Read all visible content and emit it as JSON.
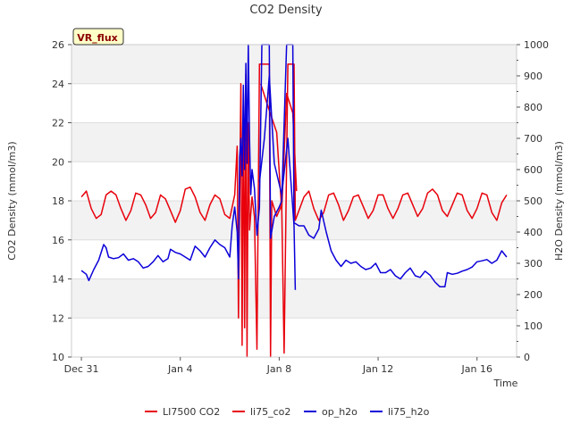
{
  "chart_data": {
    "type": "line",
    "title": "CO2 Density",
    "xlabel": "Time",
    "ylabel_left": "CO2 Density (mmol/m3)",
    "ylabel_right": "H2O Density (mmol/m3)",
    "badge": "VR_flux",
    "grid": true,
    "legend_position": "bottom",
    "x_ticks": [
      {
        "label": "Dec 31",
        "day": 0
      },
      {
        "label": "Jan 4",
        "day": 4
      },
      {
        "label": "Jan 8",
        "day": 8
      },
      {
        "label": "Jan 12",
        "day": 12
      },
      {
        "label": "Jan 16",
        "day": 16
      }
    ],
    "xlim": [
      -0.4,
      17.6
    ],
    "ylim_left": [
      10,
      26
    ],
    "yticks_left": [
      10,
      12,
      14,
      16,
      18,
      20,
      22,
      24,
      26
    ],
    "ylim_right": [
      0,
      1000
    ],
    "yticks_right": [
      0,
      100,
      200,
      300,
      400,
      500,
      600,
      700,
      800,
      900,
      1000
    ],
    "series": [
      {
        "name": "LI7500 CO2",
        "axis": "left",
        "color": "#e8000b",
        "points": [
          [
            0.0,
            18.2
          ],
          [
            0.2,
            18.5
          ],
          [
            0.4,
            17.6
          ],
          [
            0.6,
            17.1
          ],
          [
            0.8,
            17.3
          ],
          [
            1.0,
            18.3
          ],
          [
            1.2,
            18.5
          ],
          [
            1.4,
            18.3
          ],
          [
            1.6,
            17.6
          ],
          [
            1.8,
            17.0
          ],
          [
            2.0,
            17.5
          ],
          [
            2.2,
            18.4
          ],
          [
            2.4,
            18.3
          ],
          [
            2.6,
            17.8
          ],
          [
            2.8,
            17.1
          ],
          [
            3.0,
            17.4
          ],
          [
            3.2,
            18.3
          ],
          [
            3.4,
            18.1
          ],
          [
            3.6,
            17.5
          ],
          [
            3.8,
            16.9
          ],
          [
            4.0,
            17.5
          ],
          [
            4.2,
            18.6
          ],
          [
            4.4,
            18.7
          ],
          [
            4.6,
            18.2
          ],
          [
            4.8,
            17.4
          ],
          [
            5.0,
            17.0
          ],
          [
            5.2,
            17.8
          ],
          [
            5.4,
            18.3
          ],
          [
            5.6,
            18.1
          ],
          [
            5.8,
            17.3
          ],
          [
            6.0,
            17.1
          ],
          [
            6.2,
            18.3
          ],
          [
            6.3,
            20.8
          ],
          [
            6.35,
            12.0
          ],
          [
            6.45,
            24.0
          ],
          [
            6.5,
            10.6
          ],
          [
            6.55,
            23.5
          ],
          [
            6.6,
            11.5
          ],
          [
            6.65,
            24.5
          ],
          [
            6.7,
            10.0
          ],
          [
            6.75,
            22.0
          ],
          [
            6.8,
            16.5
          ],
          [
            6.9,
            18.2
          ],
          [
            7.0,
            17.2
          ],
          [
            7.1,
            10.4
          ],
          [
            7.2,
            25.0
          ],
          [
            7.6,
            25.0
          ],
          [
            7.65,
            10.0
          ],
          [
            7.7,
            18.0
          ],
          [
            7.9,
            17.2
          ],
          [
            8.1,
            17.8
          ],
          [
            8.2,
            10.2
          ],
          [
            8.35,
            25.0
          ],
          [
            8.6,
            25.0
          ],
          [
            8.65,
            17.0
          ],
          [
            8.8,
            17.5
          ],
          [
            9.0,
            18.2
          ],
          [
            9.2,
            18.5
          ],
          [
            9.4,
            17.6
          ],
          [
            9.6,
            17.0
          ],
          [
            9.8,
            17.4
          ],
          [
            10.0,
            18.3
          ],
          [
            10.2,
            18.4
          ],
          [
            10.4,
            17.8
          ],
          [
            10.6,
            17.0
          ],
          [
            10.8,
            17.5
          ],
          [
            11.0,
            18.2
          ],
          [
            11.2,
            18.3
          ],
          [
            11.4,
            17.7
          ],
          [
            11.6,
            17.1
          ],
          [
            11.8,
            17.5
          ],
          [
            12.0,
            18.3
          ],
          [
            12.2,
            18.3
          ],
          [
            12.4,
            17.6
          ],
          [
            12.6,
            17.1
          ],
          [
            12.8,
            17.6
          ],
          [
            13.0,
            18.3
          ],
          [
            13.2,
            18.4
          ],
          [
            13.4,
            17.8
          ],
          [
            13.6,
            17.2
          ],
          [
            13.8,
            17.6
          ],
          [
            14.0,
            18.4
          ],
          [
            14.2,
            18.6
          ],
          [
            14.4,
            18.3
          ],
          [
            14.6,
            17.5
          ],
          [
            14.8,
            17.2
          ],
          [
            15.0,
            17.8
          ],
          [
            15.2,
            18.4
          ],
          [
            15.4,
            18.3
          ],
          [
            15.6,
            17.5
          ],
          [
            15.8,
            17.1
          ],
          [
            16.0,
            17.6
          ],
          [
            16.2,
            18.4
          ],
          [
            16.4,
            18.3
          ],
          [
            16.6,
            17.4
          ],
          [
            16.8,
            17.0
          ],
          [
            17.0,
            17.9
          ],
          [
            17.2,
            18.3
          ]
        ]
      },
      {
        "name": "li75_co2",
        "axis": "left",
        "color": "#e8000b",
        "points": [
          [
            7.25,
            24.0
          ],
          [
            7.5,
            23.0
          ],
          [
            7.9,
            21.5
          ],
          [
            8.1,
            17.5
          ],
          [
            8.3,
            23.5
          ],
          [
            8.55,
            22.5
          ],
          [
            8.7,
            18.5
          ]
        ]
      },
      {
        "name": "op_h2o",
        "axis": "right",
        "color": "#0b00d9",
        "points": [
          [
            0.0,
            277
          ],
          [
            0.2,
            265
          ],
          [
            0.3,
            245
          ],
          [
            0.5,
            280
          ],
          [
            0.7,
            310
          ],
          [
            0.9,
            360
          ],
          [
            1.0,
            350
          ],
          [
            1.1,
            320
          ],
          [
            1.3,
            315
          ],
          [
            1.5,
            318
          ],
          [
            1.7,
            330
          ],
          [
            1.9,
            310
          ],
          [
            2.1,
            315
          ],
          [
            2.3,
            305
          ],
          [
            2.5,
            285
          ],
          [
            2.7,
            290
          ],
          [
            2.9,
            305
          ],
          [
            3.1,
            325
          ],
          [
            3.3,
            305
          ],
          [
            3.5,
            315
          ],
          [
            3.6,
            345
          ],
          [
            3.8,
            335
          ],
          [
            4.0,
            330
          ],
          [
            4.2,
            320
          ],
          [
            4.4,
            310
          ],
          [
            4.6,
            355
          ],
          [
            4.8,
            340
          ],
          [
            5.0,
            320
          ],
          [
            5.2,
            350
          ],
          [
            5.4,
            375
          ],
          [
            5.6,
            360
          ],
          [
            5.8,
            350
          ],
          [
            6.0,
            320
          ],
          [
            6.1,
            420
          ],
          [
            6.2,
            480
          ],
          [
            6.3,
            400
          ],
          [
            6.35,
            250
          ],
          [
            6.4,
            640
          ],
          [
            6.45,
            700
          ],
          [
            6.5,
            580
          ],
          [
            6.55,
            870
          ],
          [
            6.6,
            600
          ],
          [
            6.65,
            940
          ],
          [
            6.7,
            620
          ],
          [
            6.75,
            1000
          ],
          [
            6.8,
            700
          ],
          [
            6.85,
            520
          ],
          [
            6.9,
            600
          ],
          [
            7.0,
            540
          ],
          [
            7.1,
            390
          ],
          [
            7.2,
            480
          ],
          [
            7.3,
            1000
          ],
          [
            7.6,
            1000
          ],
          [
            7.65,
            380
          ],
          [
            7.8,
            450
          ],
          [
            8.0,
            480
          ],
          [
            8.1,
            500
          ],
          [
            8.3,
            1000
          ],
          [
            8.55,
            1000
          ],
          [
            8.6,
            430
          ],
          [
            8.8,
            420
          ],
          [
            9.0,
            420
          ],
          [
            9.2,
            390
          ],
          [
            9.4,
            380
          ],
          [
            9.6,
            410
          ],
          [
            9.7,
            470
          ],
          [
            9.9,
            400
          ],
          [
            10.1,
            340
          ],
          [
            10.3,
            310
          ],
          [
            10.5,
            290
          ],
          [
            10.7,
            310
          ],
          [
            10.9,
            300
          ],
          [
            11.1,
            305
          ],
          [
            11.3,
            290
          ],
          [
            11.5,
            280
          ],
          [
            11.7,
            285
          ],
          [
            11.9,
            300
          ],
          [
            12.1,
            270
          ],
          [
            12.3,
            270
          ],
          [
            12.5,
            280
          ],
          [
            12.7,
            260
          ],
          [
            12.9,
            250
          ],
          [
            13.1,
            270
          ],
          [
            13.3,
            285
          ],
          [
            13.5,
            260
          ],
          [
            13.7,
            255
          ],
          [
            13.9,
            275
          ],
          [
            14.1,
            262
          ],
          [
            14.3,
            240
          ],
          [
            14.5,
            225
          ],
          [
            14.7,
            225
          ],
          [
            14.8,
            270
          ],
          [
            15.0,
            265
          ],
          [
            15.2,
            268
          ],
          [
            15.4,
            275
          ],
          [
            15.6,
            280
          ],
          [
            15.8,
            288
          ],
          [
            16.0,
            305
          ],
          [
            16.2,
            308
          ],
          [
            16.4,
            312
          ],
          [
            16.6,
            300
          ],
          [
            16.8,
            310
          ],
          [
            17.0,
            340
          ],
          [
            17.2,
            320
          ]
        ]
      },
      {
        "name": "li75_h2o",
        "axis": "right",
        "color": "#0b00d9",
        "points": [
          [
            7.2,
            560
          ],
          [
            7.4,
            700
          ],
          [
            7.6,
            900
          ],
          [
            7.8,
            620
          ],
          [
            8.1,
            520
          ],
          [
            8.35,
            700
          ],
          [
            8.6,
            420
          ],
          [
            8.65,
            215
          ]
        ]
      }
    ]
  }
}
